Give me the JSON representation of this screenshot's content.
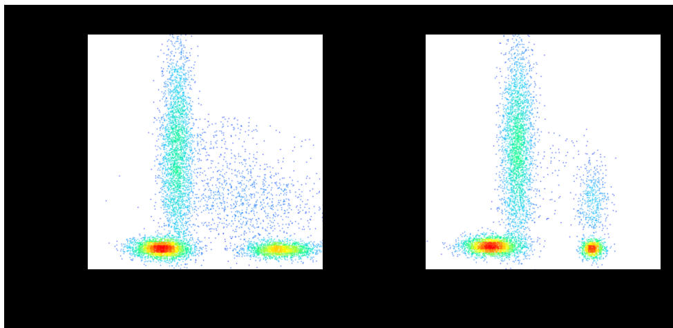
{
  "chart_data": [
    {
      "type": "scatter",
      "subtype": "density-scatter",
      "title": "",
      "xlabel": "",
      "ylabel": "",
      "xlim": [
        0,
        1
      ],
      "ylim": [
        0,
        1
      ],
      "grid": false,
      "legend": "none",
      "colormap": [
        "#0000ff",
        "#00c0ff",
        "#00ff80",
        "#ffff00",
        "#ff0000"
      ],
      "populations": [
        {
          "shape": "vertical-band",
          "center": [
            0.38,
            0.5
          ],
          "spread": [
            0.035,
            0.23
          ],
          "points": 3000
        },
        {
          "shape": "cluster",
          "center": [
            0.31,
            0.09
          ],
          "spread": [
            0.065,
            0.022
          ],
          "points": 2500
        },
        {
          "shape": "cluster",
          "center": [
            0.82,
            0.085
          ],
          "spread": [
            0.075,
            0.018
          ],
          "points": 1800
        },
        {
          "shape": "diffuse",
          "center": [
            0.7,
            0.28
          ],
          "spread": [
            0.17,
            0.11
          ],
          "points": 900
        },
        {
          "shape": "sparse",
          "center": [
            0.5,
            0.45
          ],
          "spread": [
            0.22,
            0.2
          ],
          "points": 400
        }
      ]
    },
    {
      "type": "scatter",
      "subtype": "density-scatter",
      "title": "",
      "xlabel": "",
      "ylabel": "",
      "xlim": [
        0,
        1
      ],
      "ylim": [
        0,
        1
      ],
      "grid": false,
      "legend": "none",
      "colormap": [
        "#0000ff",
        "#00c0ff",
        "#00ff80",
        "#ffff00",
        "#ff0000"
      ],
      "populations": [
        {
          "shape": "vertical-band",
          "center": [
            0.39,
            0.52
          ],
          "spread": [
            0.035,
            0.22
          ],
          "points": 3000
        },
        {
          "shape": "cluster",
          "center": [
            0.28,
            0.1
          ],
          "spread": [
            0.065,
            0.022
          ],
          "points": 2300
        },
        {
          "shape": "cluster",
          "center": [
            0.71,
            0.29
          ],
          "spread": [
            0.035,
            0.09
          ],
          "points": 450
        },
        {
          "shape": "cluster",
          "center": [
            0.71,
            0.09
          ],
          "spread": [
            0.025,
            0.02
          ],
          "points": 900
        },
        {
          "shape": "sparse",
          "center": [
            0.5,
            0.4
          ],
          "spread": [
            0.2,
            0.2
          ],
          "points": 150
        }
      ]
    }
  ]
}
